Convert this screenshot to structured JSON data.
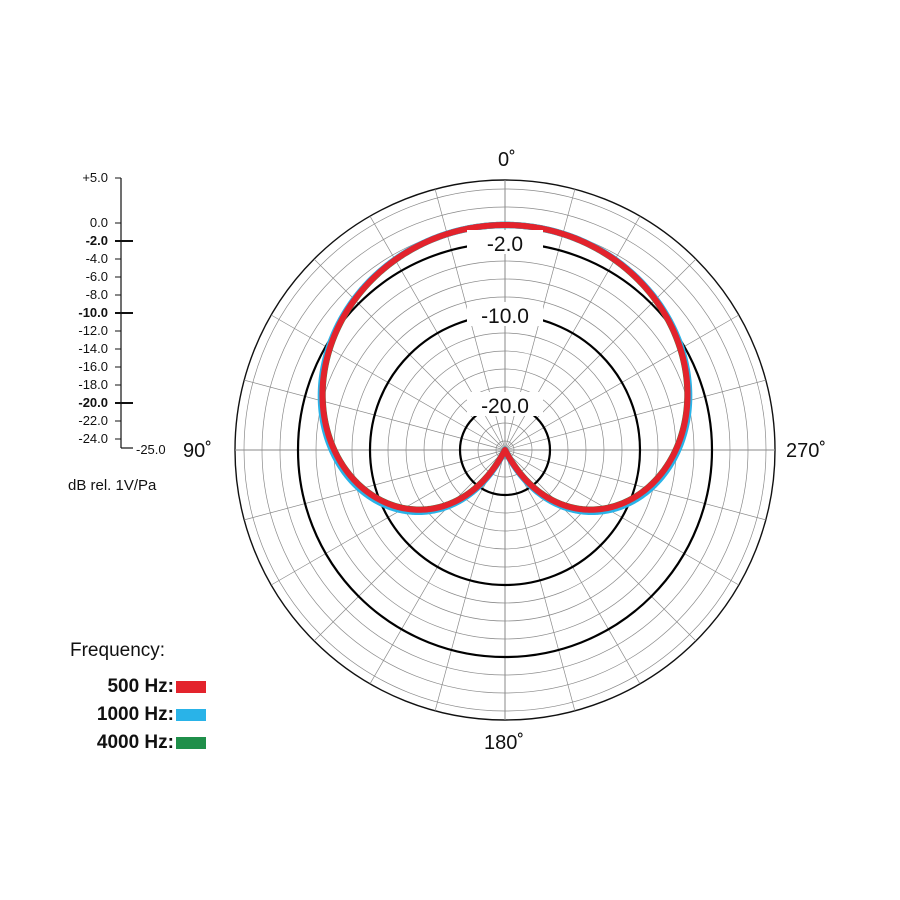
{
  "chart_data": {
    "type": "polar",
    "angle_labels": [
      "0˚",
      "90˚",
      "180˚",
      "270˚"
    ],
    "scale": {
      "unit_label": "dB rel. 1V/Pa",
      "min": -25.0,
      "max": 5.0,
      "labels": [
        "+5.0",
        "0.0",
        "-2.0",
        "-4.0",
        "-6.0",
        "-8.0",
        "-10.0",
        "-12.0",
        "-14.0",
        "-16.0",
        "-18.0",
        "-20.0",
        "-22.0",
        "-24.0"
      ],
      "bold_labels": [
        "-2.0",
        "-10.0",
        "-20.0"
      ],
      "min_label": "-25.0"
    },
    "ring_labels": [
      "-2.0",
      "-10.0",
      "-20.0"
    ],
    "grid": true,
    "legend": {
      "title": "Frequency:",
      "placement": "bottom-left",
      "entries": [
        {
          "name": "500 Hz:",
          "color": "#e3232c"
        },
        {
          "name": "1000 Hz:",
          "color": "#29b3e8"
        },
        {
          "name": "4000 Hz:",
          "color": "#1f8f4a"
        }
      ]
    },
    "series": [
      {
        "name": "4000 Hz:",
        "color": "#1f8f4a",
        "pattern": "cardioid",
        "rear_offset_db": 0.0
      },
      {
        "name": "1000 Hz:",
        "color": "#29b3e8",
        "pattern": "cardioid",
        "rear_offset_db": 0.5
      },
      {
        "name": "500 Hz:",
        "color": "#e3232c",
        "pattern": "cardioid",
        "rear_offset_db": 0.0
      }
    ]
  }
}
